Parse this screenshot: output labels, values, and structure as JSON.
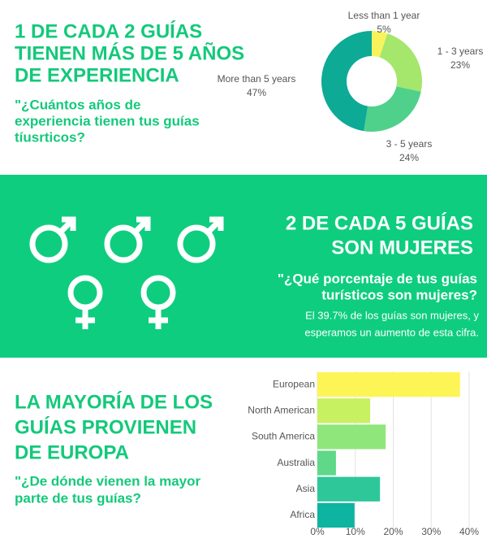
{
  "sections": [
    {
      "heading": [
        "1 DE CADA 2 GUÍAS",
        "TIENEN MÁS DE 5 AÑOS",
        "DE EXPERIENCIA"
      ],
      "question": [
        "\"¿Cuántos años de",
        "experiencia tienen tus guías",
        "tíusrticos?"
      ]
    },
    {
      "heading": [
        "2 DE CADA 5 GUÍAS",
        "SON MUJERES"
      ],
      "question": [
        "\"¿Qué porcentaje de tus guías",
        "turísticos son mujeres?"
      ],
      "body": [
        "El 39.7% de los guías son mujeres, y",
        "esperamos un aumento de esta cifra."
      ]
    },
    {
      "heading": [
        "LA MAYORÍA DE LOS",
        "GUÍAS PROVIENEN",
        "DE EUROPA"
      ],
      "question": [
        "\"¿De dónde vienen la mayor",
        "parte de tus guías?"
      ]
    }
  ],
  "chart_data": [
    {
      "type": "pie",
      "donut": true,
      "categories": [
        "Less than 1 year",
        "1 - 3 years",
        "3 - 5 years",
        "More than 5 years"
      ],
      "values": [
        5,
        23,
        24,
        47
      ],
      "value_labels": [
        "5%",
        "23%",
        "24%",
        "47%"
      ],
      "colors": [
        "#f9f35b",
        "#a5e66c",
        "#4fd18b",
        "#0daa96"
      ]
    },
    {
      "type": "bar",
      "orientation": "horizontal",
      "categories": [
        "European",
        "North American",
        "South America",
        "Australia",
        "Asia",
        "Africa"
      ],
      "values": [
        37.6,
        13.9,
        18,
        4.9,
        16.5,
        9.8
      ],
      "colors": [
        "#fdf456",
        "#c7f160",
        "#8fe67b",
        "#5fd889",
        "#2ec79a",
        "#0db4a0"
      ],
      "xlim": [
        0,
        40
      ],
      "xticks": [
        {
          "value": 0,
          "label": "0%"
        },
        {
          "value": 10,
          "label": "10%"
        },
        {
          "value": 20,
          "label": "20%"
        },
        {
          "value": 30,
          "label": "30%"
        },
        {
          "value": 40,
          "label": "40%"
        }
      ],
      "grid": true
    }
  ]
}
